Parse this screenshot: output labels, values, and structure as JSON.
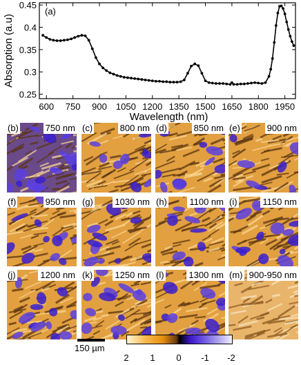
{
  "chart_data": {
    "type": "line",
    "panel_label": "(a)",
    "xlabel": "Wavelength (nm)",
    "ylabel": "Absorption (a.u)",
    "xlim": [
      560,
      2010
    ],
    "ylim": [
      0.24,
      0.455
    ],
    "xticks": [
      600,
      750,
      900,
      1050,
      1200,
      1350,
      1500,
      1650,
      1800,
      1950
    ],
    "yticks": [
      0.25,
      0.3,
      0.35,
      0.4,
      0.45
    ],
    "ytick_labels": [
      "0.25",
      "0.3",
      "0.35",
      "0.4",
      "0.45"
    ],
    "marker": "circle",
    "series": [
      {
        "x": [
          580,
          600,
          620,
          640,
          660,
          680,
          700,
          720,
          740,
          760,
          780,
          800,
          820,
          840,
          860,
          880,
          900,
          920,
          940,
          960,
          980,
          1000,
          1020,
          1040,
          1060,
          1080,
          1100,
          1120,
          1140,
          1160,
          1180,
          1200,
          1220,
          1240,
          1260,
          1280,
          1300,
          1320,
          1340,
          1360,
          1380,
          1400,
          1420,
          1440,
          1460,
          1480,
          1500,
          1520,
          1540,
          1560,
          1580,
          1600,
          1620,
          1640,
          1650,
          1660,
          1680,
          1700,
          1720,
          1740,
          1760,
          1780,
          1800,
          1820,
          1840,
          1860,
          1870,
          1880,
          1890,
          1900,
          1910,
          1920,
          1930,
          1940,
          1950,
          1960,
          1970,
          1980,
          1990,
          2000
        ],
        "y": [
          0.382,
          0.377,
          0.373,
          0.371,
          0.37,
          0.37,
          0.371,
          0.372,
          0.374,
          0.377,
          0.38,
          0.382,
          0.381,
          0.371,
          0.352,
          0.332,
          0.318,
          0.309,
          0.303,
          0.298,
          0.295,
          0.292,
          0.29,
          0.288,
          0.287,
          0.286,
          0.285,
          0.284,
          0.283,
          0.282,
          0.281,
          0.28,
          0.279,
          0.279,
          0.278,
          0.278,
          0.277,
          0.277,
          0.277,
          0.278,
          0.282,
          0.297,
          0.313,
          0.318,
          0.314,
          0.297,
          0.28,
          0.276,
          0.275,
          0.274,
          0.274,
          0.274,
          0.273,
          0.272,
          0.276,
          0.272,
          0.272,
          0.273,
          0.273,
          0.274,
          0.275,
          0.276,
          0.275,
          0.274,
          0.276,
          0.29,
          0.306,
          0.33,
          0.366,
          0.404,
          0.432,
          0.447,
          0.448,
          0.442,
          0.43,
          0.412,
          0.395,
          0.38,
          0.368,
          0.359
        ]
      }
    ]
  },
  "panels": [
    {
      "tag": "(b)",
      "wl": "750 nm"
    },
    {
      "tag": "(c)",
      "wl": "800 nm"
    },
    {
      "tag": "(d)",
      "wl": "850 nm"
    },
    {
      "tag": "(e)",
      "wl": "900 nm"
    },
    {
      "tag": "(f)",
      "wl": "950 nm"
    },
    {
      "tag": "(g)",
      "wl": "1030 nm"
    },
    {
      "tag": "(h)",
      "wl": "1100 nm"
    },
    {
      "tag": "(i)",
      "wl": "1150 nm"
    },
    {
      "tag": "(j)",
      "wl": "1200 nm"
    },
    {
      "tag": "(k)",
      "wl": "1250 nm"
    },
    {
      "tag": "(l)",
      "wl": "1300 nm"
    },
    {
      "tag": "(m)",
      "wl": "900-950 nm"
    }
  ],
  "scale_bar": {
    "label": "150 µm"
  },
  "colorbar": {
    "ticks": [
      "2",
      "1",
      "0",
      "-1",
      "-2"
    ]
  },
  "colors": {
    "line": "#000000",
    "orange": "#e8961a",
    "blue": "#3a1fd0",
    "background": "#ffffff"
  }
}
